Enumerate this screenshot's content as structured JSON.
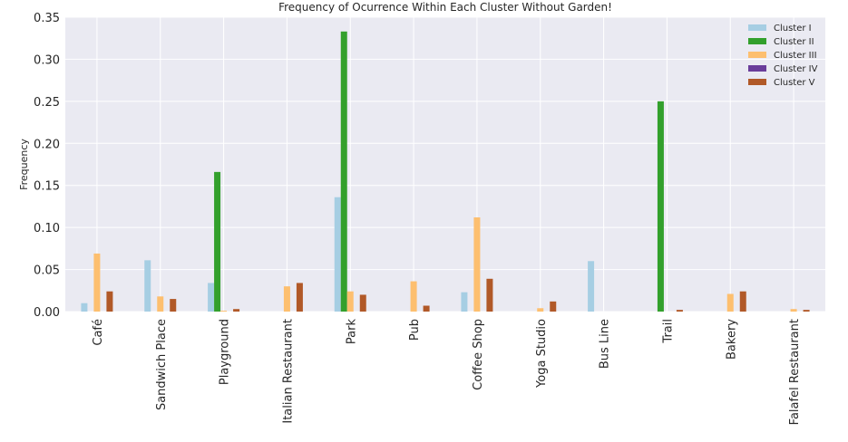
{
  "chart_data": {
    "type": "bar",
    "title": "Frequency of Ocurrence Within Each Cluster Without Garden!",
    "xlabel": "",
    "ylabel": "Frequency",
    "ylim": [
      0,
      0.35
    ],
    "yticks": [
      "0.00",
      "0.05",
      "0.10",
      "0.15",
      "0.20",
      "0.25",
      "0.30",
      "0.35"
    ],
    "grid": true,
    "legend_position": "top-right",
    "categories": [
      "Café",
      "Sandwich Place",
      "Playground",
      "Italian Restaurant",
      "Park",
      "Pub",
      "Coffee Shop",
      "Yoga Studio",
      "Bus Line",
      "Trail",
      "Bakery",
      "Falafel Restaurant"
    ],
    "series": [
      {
        "name": "Cluster I",
        "color": "#a6cee3",
        "values": [
          0.01,
          0.061,
          0.034,
          0.0,
          0.136,
          0.0,
          0.023,
          0.0,
          0.06,
          0.0,
          0.0,
          0.0
        ]
      },
      {
        "name": "Cluster II",
        "color": "#33a02c",
        "values": [
          0.0,
          0.0,
          0.166,
          0.0,
          0.333,
          0.0,
          0.0,
          0.0,
          0.0,
          0.25,
          0.0,
          0.0
        ]
      },
      {
        "name": "Cluster III",
        "color": "#fdbf6f",
        "values": [
          0.069,
          0.018,
          0.001,
          0.03,
          0.024,
          0.036,
          0.112,
          0.004,
          0.0,
          0.0,
          0.021,
          0.003
        ]
      },
      {
        "name": "Cluster IV",
        "color": "#6a3d9a",
        "values": [
          0.0,
          0.0,
          0.0,
          0.0,
          0.0,
          0.0,
          0.0,
          0.0,
          0.0,
          0.0,
          0.0,
          0.0
        ]
      },
      {
        "name": "Cluster V",
        "color": "#b15928",
        "values": [
          0.024,
          0.015,
          0.003,
          0.034,
          0.02,
          0.007,
          0.039,
          0.012,
          0.0,
          0.002,
          0.024,
          0.002
        ]
      }
    ],
    "plot_background": "#eaeaf2",
    "grid_color": "#ffffff"
  }
}
